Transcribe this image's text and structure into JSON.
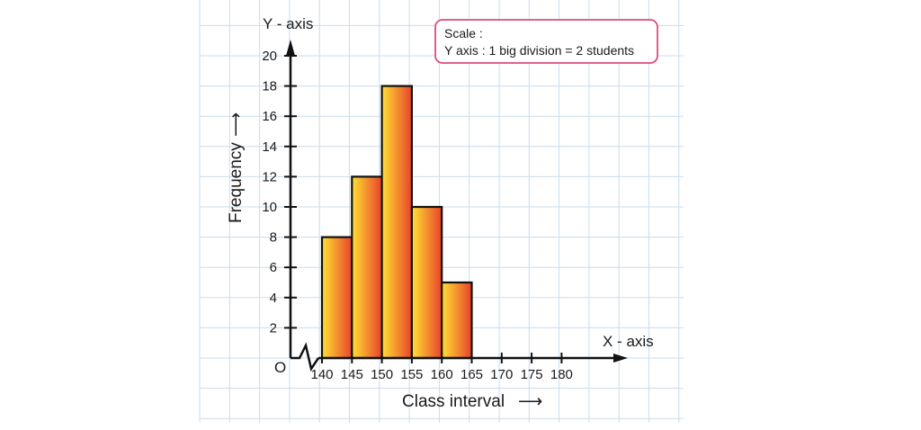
{
  "chart_data": {
    "type": "bar",
    "title": "",
    "xlabel": "Class interval",
    "ylabel": "Frequency",
    "x_axis_name": "X - axis",
    "y_axis_name": "Y - axis",
    "origin_label": "O",
    "arrow_glyph": "⟶",
    "categories": [
      "140-145",
      "145-150",
      "150-155",
      "155-160",
      "160-165"
    ],
    "bins": [
      [
        140,
        145
      ],
      [
        145,
        150
      ],
      [
        150,
        155
      ],
      [
        155,
        160
      ],
      [
        160,
        165
      ]
    ],
    "values": [
      8,
      12,
      18,
      10,
      5
    ],
    "x_ticks": [
      "140",
      "145",
      "150",
      "155",
      "160",
      "165",
      "170",
      "175",
      "180"
    ],
    "y_ticks": [
      "2",
      "4",
      "6",
      "8",
      "10",
      "12",
      "14",
      "16",
      "18",
      "20"
    ],
    "xlim": [
      140,
      180
    ],
    "ylim": [
      0,
      20
    ],
    "grid": true,
    "bar_gradient": [
      "#ffe033",
      "#e8432a"
    ],
    "bar_outline": "#111111",
    "grid_color": "#c9dcec",
    "scale_note": {
      "title": "Scale :",
      "text": "Y axis : 1 big division = 2 students",
      "border_color": "#e04a7a"
    }
  }
}
